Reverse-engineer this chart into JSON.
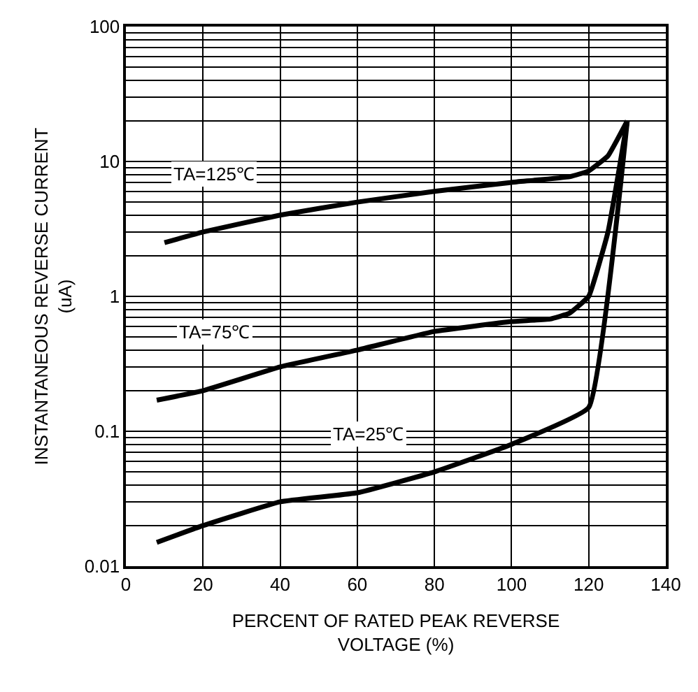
{
  "chart_data": {
    "type": "line",
    "xlabel": "PERCENT OF RATED PEAK REVERSE VOLTAGE (%)",
    "ylabel": "INSTANTANEOUS REVERSE CURRENT (uA)",
    "series": [
      {
        "name": "TA=125℃",
        "color": "#000000",
        "x": [
          10,
          20,
          40,
          60,
          80,
          100,
          115,
          120,
          125,
          130
        ],
        "values": [
          2.5,
          3.0,
          4.0,
          5.0,
          6.0,
          7.0,
          7.7,
          8.5,
          11,
          20
        ]
      },
      {
        "name": "TA=75℃",
        "color": "#000000",
        "x": [
          8,
          20,
          40,
          60,
          80,
          100,
          110,
          115,
          120,
          125,
          130
        ],
        "values": [
          0.17,
          0.2,
          0.3,
          0.4,
          0.55,
          0.65,
          0.68,
          0.75,
          1.0,
          3,
          20
        ]
      },
      {
        "name": "TA=25℃",
        "color": "#000000",
        "x": [
          8,
          20,
          40,
          60,
          80,
          100,
          120,
          130
        ],
        "values": [
          0.015,
          0.02,
          0.03,
          0.035,
          0.05,
          0.08,
          0.15,
          20
        ]
      }
    ],
    "log": "y",
    "grid": true,
    "legend": false,
    "marker": "none",
    "line_style": "solid",
    "xlim": [
      0,
      140
    ],
    "xticks": [
      0,
      20,
      40,
      60,
      80,
      100,
      120,
      140
    ],
    "ylim": [
      0.01,
      100
    ],
    "yticks": [
      0.01,
      0.1,
      1,
      10,
      100
    ]
  }
}
